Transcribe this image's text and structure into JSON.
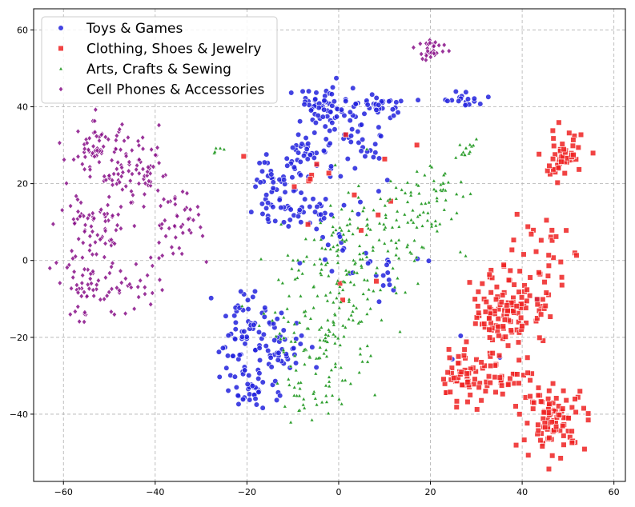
{
  "chart_data": {
    "type": "scatter",
    "title": "",
    "xlabel": "",
    "ylabel": "",
    "xlim": [
      -66.5,
      62.5
    ],
    "ylim": [
      -57.5,
      65.5
    ],
    "xticks": [
      -60,
      -40,
      -20,
      0,
      20,
      40,
      60
    ],
    "yticks": [
      -40,
      -20,
      0,
      20,
      40,
      60
    ],
    "xtick_labels": [
      "−60",
      "−40",
      "−20",
      "0",
      "20",
      "40",
      "60"
    ],
    "ytick_labels": [
      "−40",
      "−20",
      "0",
      "20",
      "40",
      "60"
    ],
    "grid": true,
    "legend_position": "top-left",
    "series": [
      {
        "name": "Toys & Games",
        "color": "#2222dd",
        "marker": "circle",
        "clusters": [
          {
            "cx": -4,
            "cy": 40,
            "sx": 3.5,
            "sy": 2.5,
            "n": 45
          },
          {
            "cx": 2,
            "cy": 35,
            "sx": 3,
            "sy": 3,
            "n": 30
          },
          {
            "cx": 8,
            "cy": 40,
            "sx": 3.5,
            "sy": 1.5,
            "n": 35
          },
          {
            "cx": 28,
            "cy": 42,
            "sx": 2.5,
            "sy": 1,
            "n": 18
          },
          {
            "cx": -6,
            "cy": 28,
            "sx": 3,
            "sy": 3,
            "n": 35
          },
          {
            "cx": -13,
            "cy": 22,
            "sx": 3,
            "sy": 3,
            "n": 35
          },
          {
            "cx": -11,
            "cy": 13,
            "sx": 4,
            "sy": 2.5,
            "n": 45
          },
          {
            "cx": 6,
            "cy": 24,
            "sx": 4,
            "sy": 6,
            "n": 18
          },
          {
            "cx": -21,
            "cy": -18,
            "sx": 2.5,
            "sy": 5,
            "n": 50
          },
          {
            "cx": -20,
            "cy": -33,
            "sx": 2.5,
            "sy": 3,
            "n": 40
          },
          {
            "cx": -13,
            "cy": -22,
            "sx": 3,
            "sy": 5,
            "n": 50
          },
          {
            "cx": 8,
            "cy": -3,
            "sx": 4,
            "sy": 3,
            "n": 18
          },
          {
            "cx": -3,
            "cy": 2,
            "sx": 4,
            "sy": 6,
            "n": 12
          },
          {
            "cx": 30,
            "cy": -20,
            "sx": 10,
            "sy": 10,
            "n": 4
          }
        ]
      },
      {
        "name": "Clothing, Shoes & Jewelry",
        "color": "#ee2222",
        "marker": "square",
        "clusters": [
          {
            "cx": 49,
            "cy": 27,
            "sx": 2.5,
            "sy": 3,
            "n": 55
          },
          {
            "cx": 44,
            "cy": 1,
            "sx": 3,
            "sy": 5,
            "n": 30
          },
          {
            "cx": 39,
            "cy": -12,
            "sx": 4,
            "sy": 5,
            "n": 90
          },
          {
            "cx": 33,
            "cy": -20,
            "sx": 3,
            "sy": 5,
            "n": 45
          },
          {
            "cx": 27,
            "cy": -31,
            "sx": 3,
            "sy": 3,
            "n": 55
          },
          {
            "cx": 37,
            "cy": -31,
            "sx": 3,
            "sy": 2,
            "n": 20
          },
          {
            "cx": 47,
            "cy": -41,
            "sx": 3.5,
            "sy": 4,
            "n": 95
          },
          {
            "cx": 2,
            "cy": 10,
            "sx": 12,
            "sy": 20,
            "n": 18
          }
        ]
      },
      {
        "name": "Arts, Crafts & Sewing",
        "color": "#229922",
        "marker": "triangle",
        "clusters": [
          {
            "cx": 14,
            "cy": 12,
            "sx": 7,
            "sy": 6,
            "n": 90
          },
          {
            "cx": 22,
            "cy": 20,
            "sx": 3,
            "sy": 3,
            "n": 20
          },
          {
            "cx": 28,
            "cy": 29,
            "sx": 1.5,
            "sy": 1.5,
            "n": 14
          },
          {
            "cx": 2,
            "cy": 0,
            "sx": 7,
            "sy": 6,
            "n": 90
          },
          {
            "cx": -3,
            "cy": -18,
            "sx": 6,
            "sy": 7,
            "n": 120
          },
          {
            "cx": -6,
            "cy": -35,
            "sx": 4,
            "sy": 4,
            "n": 35
          },
          {
            "cx": -26,
            "cy": 29,
            "sx": 1,
            "sy": 1,
            "n": 5
          }
        ]
      },
      {
        "name": "Cell Phones & Accessories",
        "color": "#881188",
        "marker": "diamond",
        "clusters": [
          {
            "cx": -52,
            "cy": 28,
            "sx": 3.5,
            "sy": 4,
            "n": 70
          },
          {
            "cx": -44,
            "cy": 22,
            "sx": 4,
            "sy": 4,
            "n": 60
          },
          {
            "cx": -53,
            "cy": 8,
            "sx": 4,
            "sy": 5,
            "n": 70
          },
          {
            "cx": -36,
            "cy": 10,
            "sx": 3,
            "sy": 5,
            "n": 45
          },
          {
            "cx": -54,
            "cy": -8,
            "sx": 4,
            "sy": 4,
            "n": 50
          },
          {
            "cx": -45,
            "cy": -6,
            "sx": 3,
            "sy": 3,
            "n": 25
          },
          {
            "cx": 20,
            "cy": 55,
            "sx": 1.8,
            "sy": 1.5,
            "n": 28
          }
        ]
      }
    ]
  }
}
